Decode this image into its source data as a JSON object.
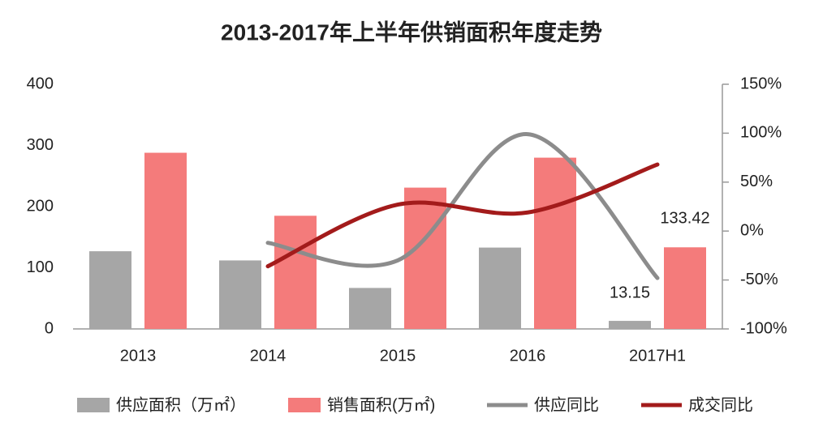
{
  "chart_data": {
    "type": "bar-line",
    "title": "2013-2017年上半年供销面积年度走势",
    "categories": [
      "2013",
      "2014",
      "2015",
      "2016",
      "2017H1"
    ],
    "series": [
      {
        "name": "供应面积（万㎡）",
        "color": "#a6a6a6",
        "kind": "bar",
        "values": [
          127,
          112,
          67,
          133,
          13.15
        ]
      },
      {
        "name": "销售面积(万㎡)",
        "color": "#f47b7b",
        "kind": "bar",
        "values": [
          288,
          185,
          231,
          280,
          133.42
        ]
      },
      {
        "name": "供应同比",
        "color": "#8c8c8c",
        "kind": "line",
        "axis": "y2",
        "values": [
          null,
          -12,
          -30,
          99,
          -48
        ]
      },
      {
        "name": "成交同比",
        "color": "#a31b1b",
        "kind": "line",
        "axis": "y2",
        "values": [
          null,
          -36,
          27,
          19,
          68
        ]
      }
    ],
    "ylim": [
      0,
      400
    ],
    "yticks": [
      0,
      100,
      200,
      300,
      400
    ],
    "y2lim": [
      -100,
      150
    ],
    "y2ticks": [
      {
        "value": -100,
        "label": "-100%"
      },
      {
        "value": -50,
        "label": "-50%"
      },
      {
        "value": 0,
        "label": "0%"
      },
      {
        "value": 50,
        "label": "50%"
      },
      {
        "value": 100,
        "label": "100%"
      },
      {
        "value": 150,
        "label": "150%"
      }
    ]
  }
}
